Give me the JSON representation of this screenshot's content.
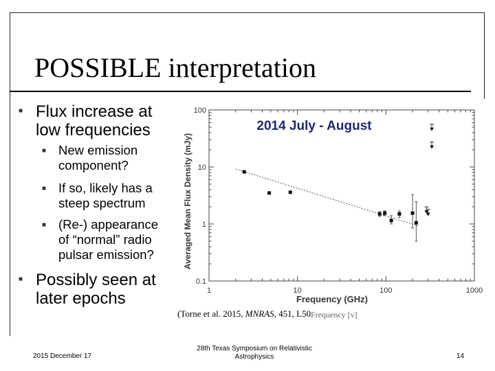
{
  "slide": {
    "title": "POSSIBLE interpretation",
    "bullets": [
      {
        "lines": [
          "Flux increase at",
          "low frequencies"
        ],
        "sub": [
          {
            "lines": [
              "New emission",
              "component?"
            ]
          },
          {
            "lines": [
              "If so, likely has a",
              "steep spectrum"
            ]
          },
          {
            "lines": [
              "(Re-) appearance",
              "of “normal” radio",
              "pulsar emission?"
            ]
          }
        ]
      },
      {
        "lines": [
          "Possibly seen at",
          "later epochs"
        ]
      }
    ],
    "bullet_icon": "square-bullet-icon"
  },
  "figure": {
    "caption": {
      "prefix": "(Torne et al. 2015, ",
      "journal": "MNRAS,",
      "suffix": " 451, L50)"
    },
    "caption_extra": "Frequency [v]"
  },
  "chart_data": {
    "type": "scatter",
    "title": "2014 July - August",
    "xlabel": "Frequency (GHz)",
    "ylabel": "Averaged Mean Flux Density (mJy)",
    "xscale": "log",
    "yscale": "log",
    "xlim": [
      1,
      1000
    ],
    "ylim": [
      0.1,
      100
    ],
    "x_ticks": [
      {
        "value": 1,
        "label": "1"
      },
      {
        "value": 10,
        "label": "10"
      },
      {
        "value": 100,
        "label": "100"
      },
      {
        "value": 1000,
        "label": "1000"
      }
    ],
    "y_ticks": [
      {
        "value": 0.1,
        "label": "0.1"
      },
      {
        "value": 1,
        "label": "1"
      },
      {
        "value": 10,
        "label": "10"
      },
      {
        "value": 100,
        "label": "100"
      }
    ],
    "points": [
      {
        "x": 2.5,
        "y": 8.2,
        "err_lo": 0.3,
        "err_hi": 0.3
      },
      {
        "x": 4.8,
        "y": 3.5
      },
      {
        "x": 8.3,
        "y": 3.6
      },
      {
        "x": 85,
        "y": 1.5,
        "err_lo": 0.15,
        "err_hi": 0.15
      },
      {
        "x": 97,
        "y": 1.55,
        "err_lo": 0.15,
        "err_hi": 0.15
      },
      {
        "x": 115,
        "y": 1.15,
        "err_lo": 0.15,
        "err_hi": 0.25
      },
      {
        "x": 142,
        "y": 1.5,
        "err_lo": 0.2,
        "err_hi": 0.2
      },
      {
        "x": 200,
        "y": 1.55,
        "err_lo": 0.7,
        "err_hi": 1.7
      },
      {
        "x": 220,
        "y": 1.05,
        "err_lo": 0.55,
        "err_hi": 1.4
      }
    ],
    "upper_limits": [
      {
        "x": 288,
        "y": 1.6
      },
      {
        "x": 300,
        "y": 1.45
      },
      {
        "x": 330,
        "y": 45
      },
      {
        "x": 330,
        "y": 22
      }
    ],
    "fit": {
      "x": [
        2,
        230
      ],
      "y": [
        9.2,
        0.93
      ]
    }
  },
  "footer": {
    "date": "2015 December 17",
    "event": [
      "28th Texas Symposium on Relativistic",
      "Astrophysics"
    ],
    "page": "14"
  }
}
